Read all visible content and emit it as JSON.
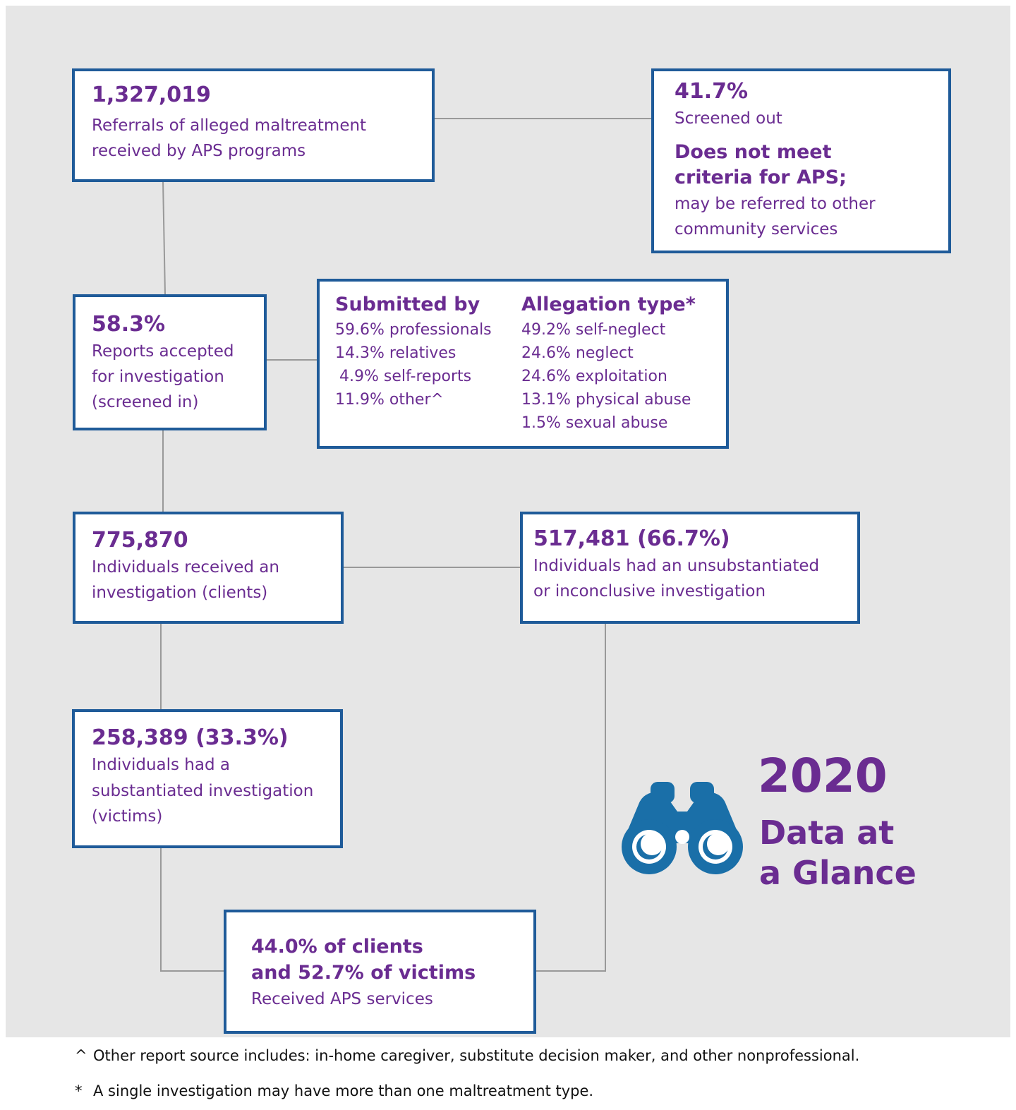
{
  "boxes": [
    {
      "headline": "1,327,019",
      "lines": [
        "Referrals of alleged maltreatment",
        "received by APS programs"
      ]
    },
    {
      "headline": "41.7%",
      "lines": [
        "Screened out"
      ],
      "emphasis": [
        "Does not meet",
        "criteria for APS;"
      ],
      "note": [
        "may be referred to other",
        "community services"
      ]
    },
    {
      "headline": "58.3%",
      "lines": [
        "Reports accepted",
        "for investigation",
        "(screened in)"
      ]
    },
    {
      "columns": [
        {
          "title": "Submitted by",
          "items": [
            "59.6% professionals",
            "14.3% relatives",
            "4.9% self-reports",
            "11.9% other^"
          ]
        },
        {
          "title": "Allegation type*",
          "items": [
            "49.2% self-neglect",
            "24.6% neglect",
            "24.6% exploitation",
            "13.1% physical abuse",
            "1.5% sexual abuse"
          ]
        }
      ]
    },
    {
      "headline": "775,870",
      "lines": [
        "Individuals received an",
        "investigation (clients)"
      ]
    },
    {
      "headline": "517,481 (66.7%)",
      "lines": [
        "Individuals had an unsubstantiated",
        "or inconclusive investigation"
      ]
    },
    {
      "headline": "258,389 (33.3%)",
      "lines": [
        "Individuals had a",
        "substantiated investigation",
        "(victims)"
      ]
    },
    {
      "emphasis": [
        "44.0% of clients",
        "and 52.7% of victims"
      ],
      "lines": [
        "Received APS services"
      ]
    }
  ],
  "badge": {
    "year": "2020",
    "title": [
      "Data at",
      "a Glance"
    ]
  },
  "footnotes": [
    {
      "marker": "^",
      "text": "Other report source includes: in-home caregiver, substitute decision maker, and other nonprofessional."
    },
    {
      "marker": "*",
      "text": "A single investigation may have more than one maltreatment type."
    }
  ]
}
